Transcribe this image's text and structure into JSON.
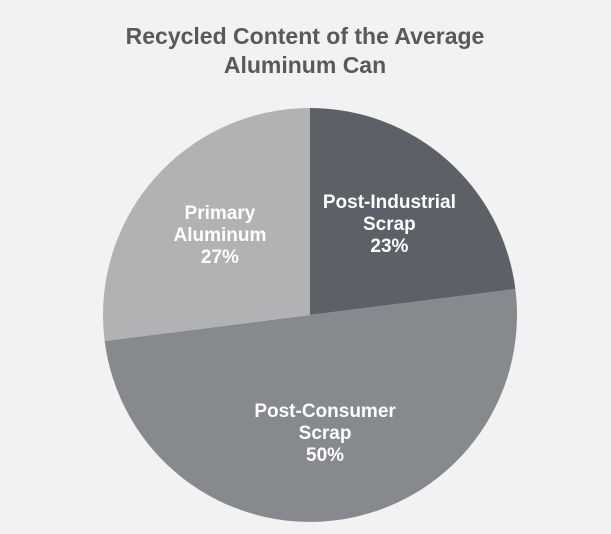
{
  "chart_data": {
    "type": "pie",
    "title": "Recycled Content of the Average Aluminum Can",
    "categories": [
      "Post-Industrial Scrap",
      "Post-Consumer Scrap",
      "Primary Aluminum"
    ],
    "values": [
      23,
      50,
      27
    ],
    "value_labels": [
      "23%",
      "50%",
      "27%"
    ],
    "colors": [
      "#5b6166",
      "#86898d",
      "#b1b2b4"
    ]
  }
}
